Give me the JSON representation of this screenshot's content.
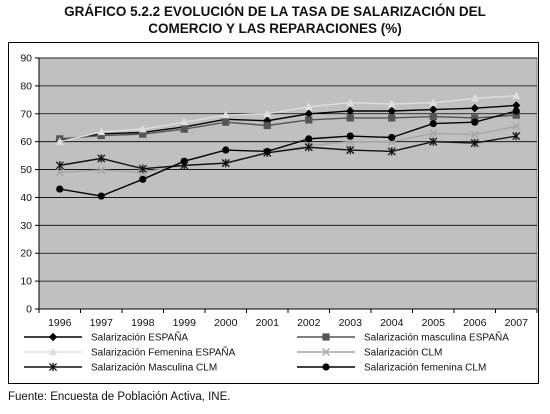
{
  "title": {
    "line1": "GRÁFICO 5.2.2 EVOLUCIÓN DE LA TASA DE SALARIZACIÓN DEL",
    "line2": "COMERCIO Y LAS REPARACIONES (%)"
  },
  "source": "Fuente: Encuesta de Población Activa, INE.",
  "chart_data": {
    "type": "line",
    "categories": [
      "1996",
      "1997",
      "1998",
      "1999",
      "2000",
      "2001",
      "2002",
      "2003",
      "2004",
      "2005",
      "2006",
      "2007"
    ],
    "ylim": [
      0,
      90
    ],
    "yticks": [
      "0",
      "10",
      "20",
      "30",
      "40",
      "50",
      "60",
      "70",
      "80",
      "90"
    ],
    "grid": true,
    "legend_position": "bottom",
    "plot_background": "#c0c0c0",
    "series": [
      {
        "name": "Salarización ESPAÑA",
        "marker": "diamond",
        "color": "#000000",
        "values": [
          60.5,
          62.8,
          63.3,
          65.3,
          68.0,
          67.5,
          70.0,
          71.0,
          71.0,
          71.5,
          72.0,
          73.0
        ]
      },
      {
        "name": "Salarización masculina ESPAÑA",
        "marker": "square",
        "color": "#555555",
        "values": [
          61.0,
          62.2,
          62.7,
          64.5,
          67.0,
          65.8,
          67.8,
          68.5,
          68.5,
          69.0,
          68.5,
          69.5
        ]
      },
      {
        "name": "Salarización Femenina ESPAÑA",
        "marker": "triangle",
        "color": "#dedede",
        "values": [
          60.0,
          63.5,
          64.5,
          67.0,
          69.5,
          70.0,
          72.5,
          74.0,
          73.5,
          74.0,
          75.5,
          76.5
        ]
      },
      {
        "name": "Salarización CLM",
        "marker": "x",
        "color": "#a6a6a6",
        "values": [
          49.0,
          49.8,
          49.0,
          51.5,
          52.5,
          56.0,
          58.5,
          60.0,
          60.0,
          63.0,
          62.5,
          65.5
        ]
      },
      {
        "name": "Salarización Masculina CLM",
        "marker": "asterisk",
        "color": "#111111",
        "values": [
          51.5,
          54.0,
          50.3,
          51.5,
          52.3,
          56.0,
          58.0,
          57.0,
          56.5,
          60.0,
          59.5,
          62.0
        ]
      },
      {
        "name": "Salarización femenina CLM",
        "marker": "circle",
        "color": "#000000",
        "values": [
          43.0,
          40.5,
          46.5,
          53.0,
          57.0,
          56.5,
          61.0,
          62.0,
          61.5,
          66.5,
          67.0,
          71.0
        ]
      }
    ]
  }
}
